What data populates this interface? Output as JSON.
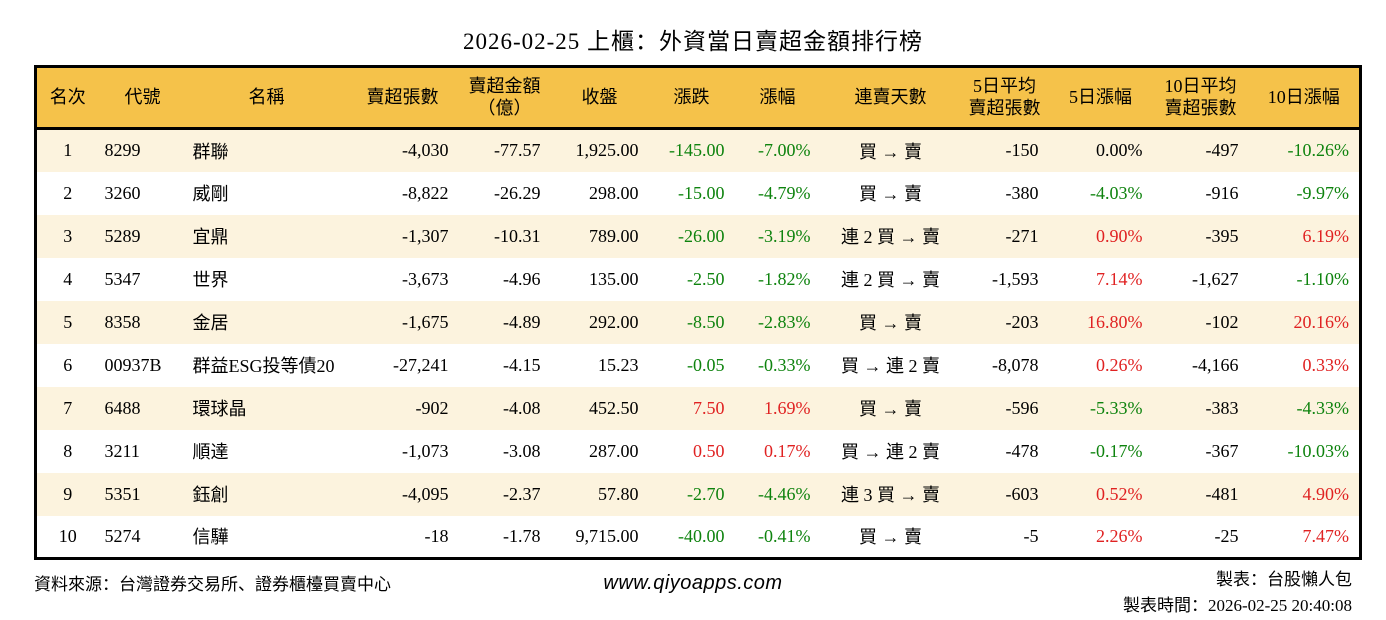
{
  "title": "2026-02-25 上櫃：外資當日賣超金額排行榜",
  "colors": {
    "header_bg": "#F5C24A",
    "row_alt_bg": "#FCF3DE",
    "up_red": "#E02222",
    "down_green": "#0E830E",
    "neutral": "#000000",
    "border": "#000000"
  },
  "columns": [
    {
      "key": "rank",
      "label": "名次",
      "align": "center",
      "width": 63,
      "signed": false
    },
    {
      "key": "code",
      "label": "代號",
      "align": "left",
      "width": 88,
      "signed": false
    },
    {
      "key": "name",
      "label": "名稱",
      "align": "left",
      "width": 160,
      "signed": false
    },
    {
      "key": "sell_volume",
      "label": "賣超張數",
      "align": "right",
      "width": 112,
      "signed": false
    },
    {
      "key": "sell_amount",
      "label": "賣超金額\n（億）",
      "align": "right",
      "width": 92,
      "signed": false
    },
    {
      "key": "close",
      "label": "收盤",
      "align": "right",
      "width": 98,
      "signed": false
    },
    {
      "key": "change",
      "label": "漲跌",
      "align": "right",
      "width": 86,
      "signed": true
    },
    {
      "key": "change_pct",
      "label": "漲幅",
      "align": "right",
      "width": 86,
      "signed": true
    },
    {
      "key": "streak",
      "label": "連賣天數",
      "align": "center",
      "width": 140,
      "signed": false
    },
    {
      "key": "avg5_volume",
      "label": "5日平均\n賣超張數",
      "align": "right",
      "width": 88,
      "signed": false
    },
    {
      "key": "pct5",
      "label": "5日漲幅",
      "align": "right",
      "width": 104,
      "signed": true
    },
    {
      "key": "avg10_volume",
      "label": "10日平均\n賣超張數",
      "align": "right",
      "width": 96,
      "signed": false
    },
    {
      "key": "pct10",
      "label": "10日漲幅",
      "align": "right",
      "width": 112,
      "signed": true
    }
  ],
  "chart_data": {
    "type": "table",
    "title": "2026-02-25 上櫃：外資當日賣超金額排行榜",
    "columns": [
      "名次",
      "代號",
      "名稱",
      "賣超張數",
      "賣超金額（億）",
      "收盤",
      "漲跌",
      "漲幅",
      "連賣天數",
      "5日平均賣超張數",
      "5日漲幅",
      "10日平均賣超張數",
      "10日漲幅"
    ],
    "rows": [
      [
        "1",
        "8299",
        "群聯",
        "-4,030",
        "-77.57",
        "1,925.00",
        "-145.00",
        "-7.00%",
        "買 → 賣",
        "-150",
        "0.00%",
        "-497",
        "-10.26%"
      ],
      [
        "2",
        "3260",
        "威剛",
        "-8,822",
        "-26.29",
        "298.00",
        "-15.00",
        "-4.79%",
        "買 → 賣",
        "-380",
        "-4.03%",
        "-916",
        "-9.97%"
      ],
      [
        "3",
        "5289",
        "宜鼎",
        "-1,307",
        "-10.31",
        "789.00",
        "-26.00",
        "-3.19%",
        "連 2 買 → 賣",
        "-271",
        "0.90%",
        "-395",
        "6.19%"
      ],
      [
        "4",
        "5347",
        "世界",
        "-3,673",
        "-4.96",
        "135.00",
        "-2.50",
        "-1.82%",
        "連 2 買 → 賣",
        "-1,593",
        "7.14%",
        "-1,627",
        "-1.10%"
      ],
      [
        "5",
        "8358",
        "金居",
        "-1,675",
        "-4.89",
        "292.00",
        "-8.50",
        "-2.83%",
        "買 → 賣",
        "-203",
        "16.80%",
        "-102",
        "20.16%"
      ],
      [
        "6",
        "00937B",
        "群益ESG投等債20",
        "-27,241",
        "-4.15",
        "15.23",
        "-0.05",
        "-0.33%",
        "買 → 連 2 賣",
        "-8,078",
        "0.26%",
        "-4,166",
        "0.33%"
      ],
      [
        "7",
        "6488",
        "環球晶",
        "-902",
        "-4.08",
        "452.50",
        "7.50",
        "1.69%",
        "買 → 賣",
        "-596",
        "-5.33%",
        "-383",
        "-4.33%"
      ],
      [
        "8",
        "3211",
        "順達",
        "-1,073",
        "-3.08",
        "287.00",
        "0.50",
        "0.17%",
        "買 → 連 2 賣",
        "-478",
        "-0.17%",
        "-367",
        "-10.03%"
      ],
      [
        "9",
        "5351",
        "鈺創",
        "-4,095",
        "-2.37",
        "57.80",
        "-2.70",
        "-4.46%",
        "連 3 買 → 賣",
        "-603",
        "0.52%",
        "-481",
        "4.90%"
      ],
      [
        "10",
        "5274",
        "信驊",
        "-18",
        "-1.78",
        "9,715.00",
        "-40.00",
        "-0.41%",
        "買 → 賣",
        "-5",
        "2.26%",
        "-25",
        "7.47%"
      ]
    ]
  },
  "footer": {
    "source": "資料來源：台灣證券交易所、證券櫃檯買賣中心",
    "website": "www.qiyoapps.com",
    "maker": "製表：台股懶人包",
    "made_time": "製表時間：2026-02-25 20:40:08"
  }
}
